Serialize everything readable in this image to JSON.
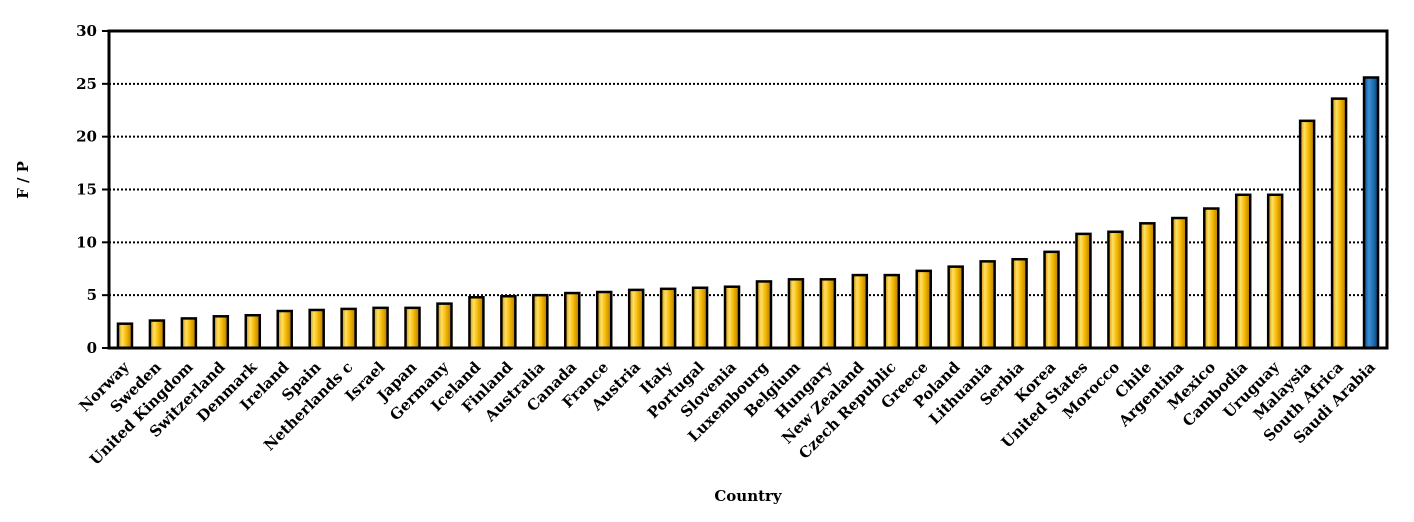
{
  "chart_data": {
    "type": "bar",
    "title": "",
    "xlabel": "Country",
    "ylabel": "F / P",
    "ylim": [
      0,
      30
    ],
    "yticks": [
      0,
      5,
      10,
      15,
      20,
      25,
      30
    ],
    "grid": true,
    "legend": "none",
    "categories": [
      "Norway",
      "Sweden",
      "United Kingdom",
      "Switzerland",
      "Denmark",
      "Ireland",
      "Spain",
      "Netherlands c",
      "Israel",
      "Japan",
      "Germany",
      "Iceland",
      "Finland",
      "Australia",
      "Canada",
      "France",
      "Austria",
      "Italy",
      "Portugal",
      "Slovenia",
      "Luxembourg",
      "Belgium",
      "Hungary",
      "New Zealand",
      "Czech Republic",
      "Greece",
      "Poland",
      "Lithuania",
      "Serbia",
      "Korea",
      "United States",
      "Morocco",
      "Chile",
      "Argentina",
      "Mexico",
      "Cambodia",
      "Uruguay",
      "Malaysia",
      "South Africa",
      "Saudi Arabia"
    ],
    "values": [
      2.3,
      2.6,
      2.8,
      3.0,
      3.1,
      3.5,
      3.6,
      3.7,
      3.8,
      3.8,
      4.2,
      4.8,
      4.9,
      5.0,
      5.2,
      5.3,
      5.5,
      5.6,
      5.7,
      5.8,
      6.3,
      6.5,
      6.5,
      6.9,
      6.9,
      7.3,
      7.7,
      8.2,
      8.4,
      9.1,
      10.8,
      11.0,
      11.8,
      12.3,
      13.2,
      14.5,
      14.5,
      21.5,
      23.6,
      25.6
    ],
    "colors": {
      "bar": "#F5B800",
      "highlight": "#1F6FB2",
      "outline": "#000000"
    },
    "highlight_index": 39
  }
}
